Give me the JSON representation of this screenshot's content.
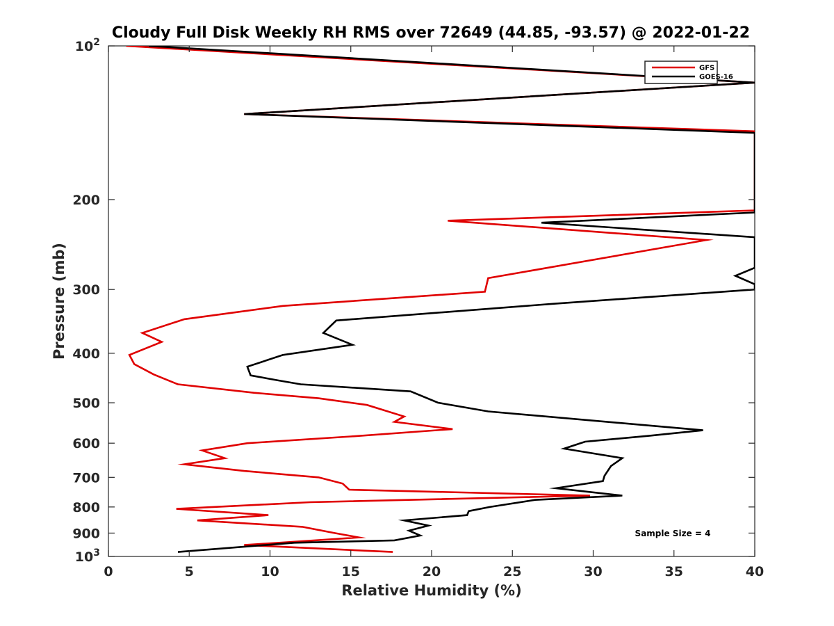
{
  "chart_data": {
    "type": "line",
    "title": "Cloudy Full Disk Weekly RH RMS over 72649 (44.85, -93.57) @ 2022-01-22",
    "xlabel": "Relative Humidity (%)",
    "ylabel": "Pressure (mb)",
    "xlim": [
      0,
      40
    ],
    "ylim": [
      100,
      1000
    ],
    "yscale": "log",
    "y_reversed": true,
    "x_ticks": [
      "0",
      "5",
      "10",
      "15",
      "20",
      "25",
      "30",
      "35",
      "40"
    ],
    "y_ticks": [
      {
        "value": 100,
        "base": "10",
        "exp": "2"
      },
      {
        "value": 200,
        "label": "200"
      },
      {
        "value": 300,
        "label": "300"
      },
      {
        "value": 400,
        "label": "400"
      },
      {
        "value": 500,
        "label": "500"
      },
      {
        "value": 600,
        "label": "600"
      },
      {
        "value": 700,
        "label": "700"
      },
      {
        "value": 800,
        "label": "800"
      },
      {
        "value": 900,
        "label": "900"
      },
      {
        "value": 1000,
        "base": "10",
        "exp": "3"
      }
    ],
    "legend_position": "top-right",
    "grid": false,
    "annotation": "Sample Size = 4",
    "series": [
      {
        "name": "GFS",
        "color": "#e00000",
        "points": [
          [
            1.1,
            100
          ],
          [
            40,
            118
          ],
          [
            8.4,
            136
          ],
          [
            40,
            147
          ],
          [
            40,
            210
          ],
          [
            21,
            220
          ],
          [
            37,
            240
          ],
          [
            23.5,
            285
          ],
          [
            23.3,
            303
          ],
          [
            10.8,
            323
          ],
          [
            4.7,
            343
          ],
          [
            2.1,
            365
          ],
          [
            3.3,
            380
          ],
          [
            1.3,
            403
          ],
          [
            1.6,
            420
          ],
          [
            2.8,
            440
          ],
          [
            4.3,
            460
          ],
          [
            9,
            478
          ],
          [
            13,
            490
          ],
          [
            16,
            505
          ],
          [
            18.3,
            532
          ],
          [
            17.7,
            545
          ],
          [
            21.3,
            563
          ],
          [
            15,
            582
          ],
          [
            8.6,
            600
          ],
          [
            5.8,
            620
          ],
          [
            7.2,
            642
          ],
          [
            4.7,
            660
          ],
          [
            8.4,
            680
          ],
          [
            13,
            700
          ],
          [
            14.5,
            720
          ],
          [
            14.9,
            740
          ],
          [
            29.8,
            760
          ],
          [
            12.5,
            783
          ],
          [
            4.2,
            807
          ],
          [
            9.9,
            830
          ],
          [
            5.5,
            850
          ],
          [
            12,
            875
          ],
          [
            14,
            900
          ],
          [
            15.5,
            918
          ],
          [
            8.4,
            950
          ],
          [
            17.6,
            980
          ]
        ]
      },
      {
        "name": "GOES-16",
        "color": "#000000",
        "points": [
          [
            2.5,
            100
          ],
          [
            40,
            118
          ],
          [
            8.4,
            136
          ],
          [
            40,
            148
          ],
          [
            40,
            212
          ],
          [
            26.8,
            222
          ],
          [
            40,
            237
          ],
          [
            40,
            272
          ],
          [
            38.8,
            282
          ],
          [
            40,
            293
          ],
          [
            40,
            300
          ],
          [
            27.5,
            320
          ],
          [
            14.1,
            345
          ],
          [
            13.3,
            365
          ],
          [
            15.1,
            385
          ],
          [
            10.8,
            403
          ],
          [
            8.6,
            425
          ],
          [
            8.8,
            442
          ],
          [
            10.5,
            452
          ],
          [
            11.9,
            460
          ],
          [
            18.7,
            475
          ],
          [
            20.4,
            500
          ],
          [
            23.5,
            520
          ],
          [
            36.8,
            566
          ],
          [
            33.5,
            580
          ],
          [
            29.5,
            596
          ],
          [
            28.2,
            615
          ],
          [
            31.8,
            642
          ],
          [
            31.1,
            665
          ],
          [
            30.7,
            695
          ],
          [
            30.6,
            712
          ],
          [
            27.7,
            735
          ],
          [
            31.8,
            760
          ],
          [
            26.4,
            775
          ],
          [
            23.6,
            800
          ],
          [
            22.3,
            815
          ],
          [
            22.2,
            830
          ],
          [
            18.3,
            850
          ],
          [
            19.8,
            870
          ],
          [
            18.6,
            890
          ],
          [
            19.3,
            910
          ],
          [
            17.7,
            930
          ],
          [
            11.5,
            940
          ],
          [
            4.3,
            980
          ]
        ]
      }
    ]
  }
}
